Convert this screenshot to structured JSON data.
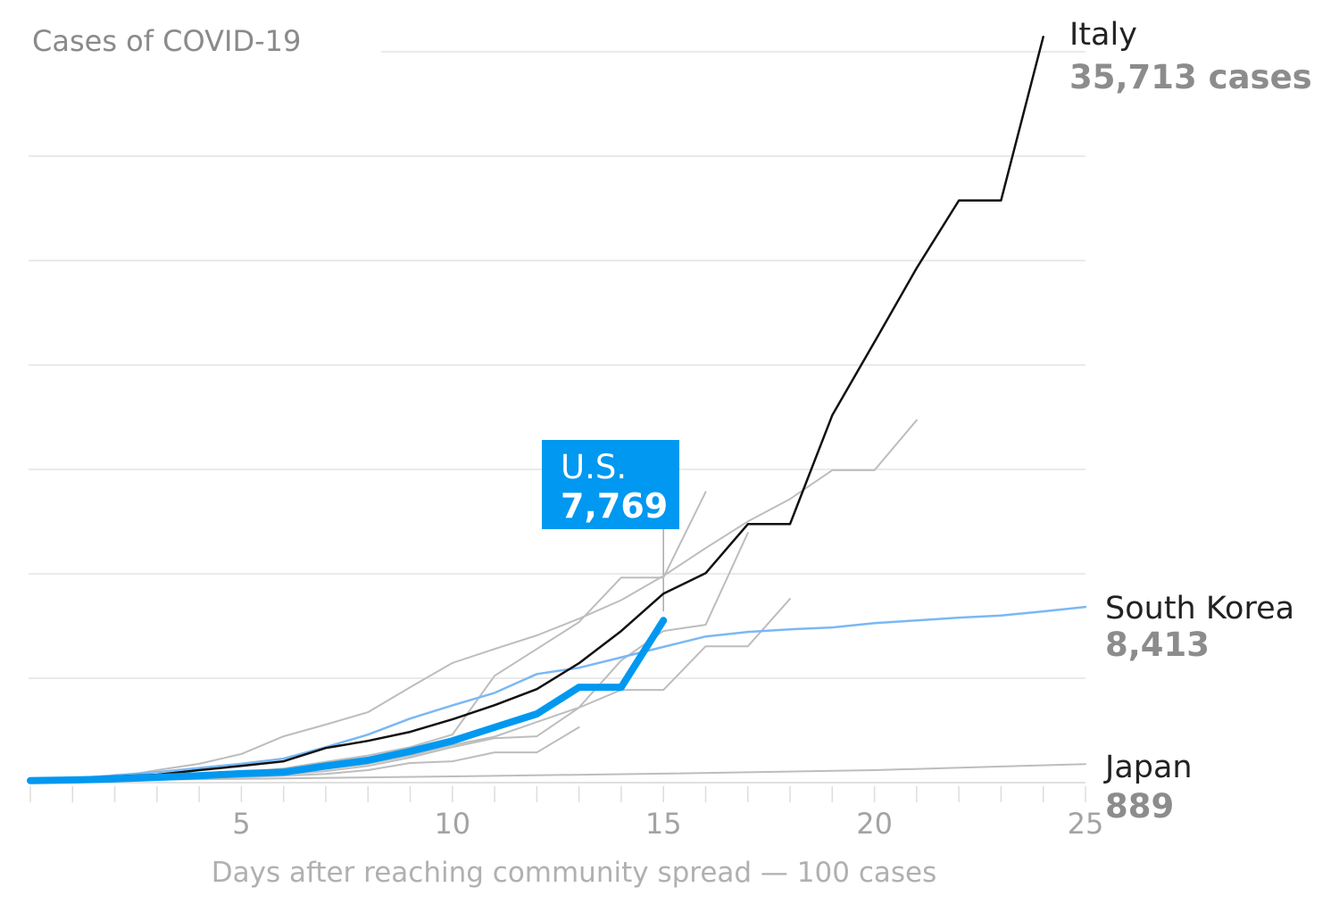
{
  "chart_data": {
    "type": "line",
    "title": "Cases of COVID-19",
    "xlabel": "Days after reaching community spread — 100 cases",
    "ylabel": "",
    "xlim": [
      0,
      25
    ],
    "ylim": [
      0,
      35000
    ],
    "x_ticks": [
      5,
      10,
      15,
      20,
      25
    ],
    "y_gridlines": [
      0,
      5000,
      10000,
      15000,
      20000,
      25000,
      30000,
      35000
    ],
    "grid": true,
    "colors": {
      "us": "#0098f0",
      "south_korea": "#7ab8f5",
      "italy": "#111111",
      "other": "#bdbdbd",
      "grid": "#e3e3e3"
    },
    "series": [
      {
        "key": "other1",
        "highlight": "other",
        "x": [
          0,
          1,
          2,
          3,
          4,
          5,
          6,
          7,
          8,
          9,
          10,
          11,
          12,
          13,
          14,
          15,
          16,
          17,
          18,
          19,
          20,
          21
        ],
        "values": [
          100,
          150,
          250,
          600,
          900,
          1370,
          2220,
          2780,
          3370,
          4570,
          5730,
          6400,
          7050,
          7850,
          8740,
          9900,
          11230,
          12510,
          13580,
          14960,
          14960,
          17361
        ]
      },
      {
        "key": "other2",
        "highlight": "other",
        "x": [
          0,
          1,
          2,
          3,
          4,
          5,
          6,
          7,
          8,
          9,
          10,
          11,
          12,
          13,
          14,
          15,
          16
        ],
        "values": [
          100,
          130,
          170,
          230,
          330,
          480,
          680,
          1000,
          1300,
          1700,
          2300,
          5120,
          6400,
          7690,
          9820,
          9820,
          13920
        ]
      },
      {
        "key": "other3",
        "highlight": "other",
        "x": [
          0,
          1,
          2,
          3,
          4,
          5,
          6,
          7,
          8,
          9,
          10,
          11,
          12,
          13,
          14,
          15,
          16,
          17
        ],
        "values": [
          100,
          120,
          150,
          200,
          260,
          350,
          480,
          650,
          900,
          1300,
          1800,
          2200,
          2900,
          3600,
          5850,
          7260,
          7560,
          11960
        ]
      },
      {
        "key": "other4",
        "highlight": "other",
        "x": [
          0,
          1,
          2,
          3,
          4,
          5,
          6,
          7,
          8,
          9,
          10,
          11,
          12,
          13,
          14,
          15,
          16,
          17,
          18
        ],
        "values": [
          100,
          120,
          150,
          190,
          240,
          300,
          400,
          550,
          800,
          1200,
          1700,
          2130,
          2220,
          3590,
          4440,
          4440,
          6530,
          6530,
          8800
        ]
      },
      {
        "key": "other5",
        "highlight": "other",
        "x": [
          0,
          1,
          2,
          3,
          4,
          5,
          6,
          7,
          8,
          9,
          10,
          11,
          12,
          13
        ],
        "values": [
          100,
          120,
          140,
          170,
          210,
          260,
          330,
          420,
          600,
          940,
          1020,
          1450,
          1450,
          2650
        ]
      },
      {
        "key": "japan",
        "name": "Japan",
        "label_value": "889",
        "highlight": "other",
        "x": [
          0,
          5,
          10,
          15,
          20,
          25
        ],
        "values": [
          100,
          180,
          300,
          430,
          600,
          889
        ]
      },
      {
        "key": "south_korea",
        "name": "South Korea",
        "label_value": "8,413",
        "highlight": "south_korea",
        "x": [
          0,
          1,
          2,
          3,
          4,
          5,
          6,
          7,
          8,
          9,
          10,
          11,
          12,
          13,
          14,
          15,
          16,
          17,
          18,
          19,
          20,
          21,
          22,
          23,
          24,
          25
        ],
        "values": [
          100,
          200,
          350,
          500,
          700,
          900,
          1150,
          1700,
          2300,
          3070,
          3700,
          4300,
          5200,
          5500,
          6000,
          6500,
          7000,
          7220,
          7340,
          7430,
          7640,
          7770,
          7900,
          8000,
          8200,
          8413
        ]
      },
      {
        "key": "italy",
        "name": "Italy",
        "label_value": "35,713 cases",
        "highlight": "italy",
        "x": [
          0,
          1,
          2,
          3,
          4,
          5,
          6,
          7,
          8,
          9,
          10,
          11,
          12,
          13,
          14,
          15,
          16,
          17,
          18,
          19,
          20,
          21,
          22,
          23,
          24
        ],
        "values": [
          100,
          200,
          300,
          380,
          600,
          800,
          1020,
          1660,
          2000,
          2430,
          3030,
          3710,
          4480,
          5720,
          7260,
          9050,
          10030,
          12380,
          12380,
          17590,
          21100,
          24640,
          27880,
          27880,
          35713
        ]
      },
      {
        "key": "us",
        "name": "U.S.",
        "label_value": "7,769",
        "highlight": "us",
        "x": [
          0,
          1,
          2,
          3,
          4,
          5,
          6,
          7,
          8,
          9,
          10,
          11,
          12,
          13,
          14,
          15
        ],
        "values": [
          100,
          130,
          180,
          250,
          330,
          430,
          500,
          800,
          1070,
          1500,
          2000,
          2650,
          3290,
          4570,
          4570,
          7769
        ]
      }
    ]
  }
}
